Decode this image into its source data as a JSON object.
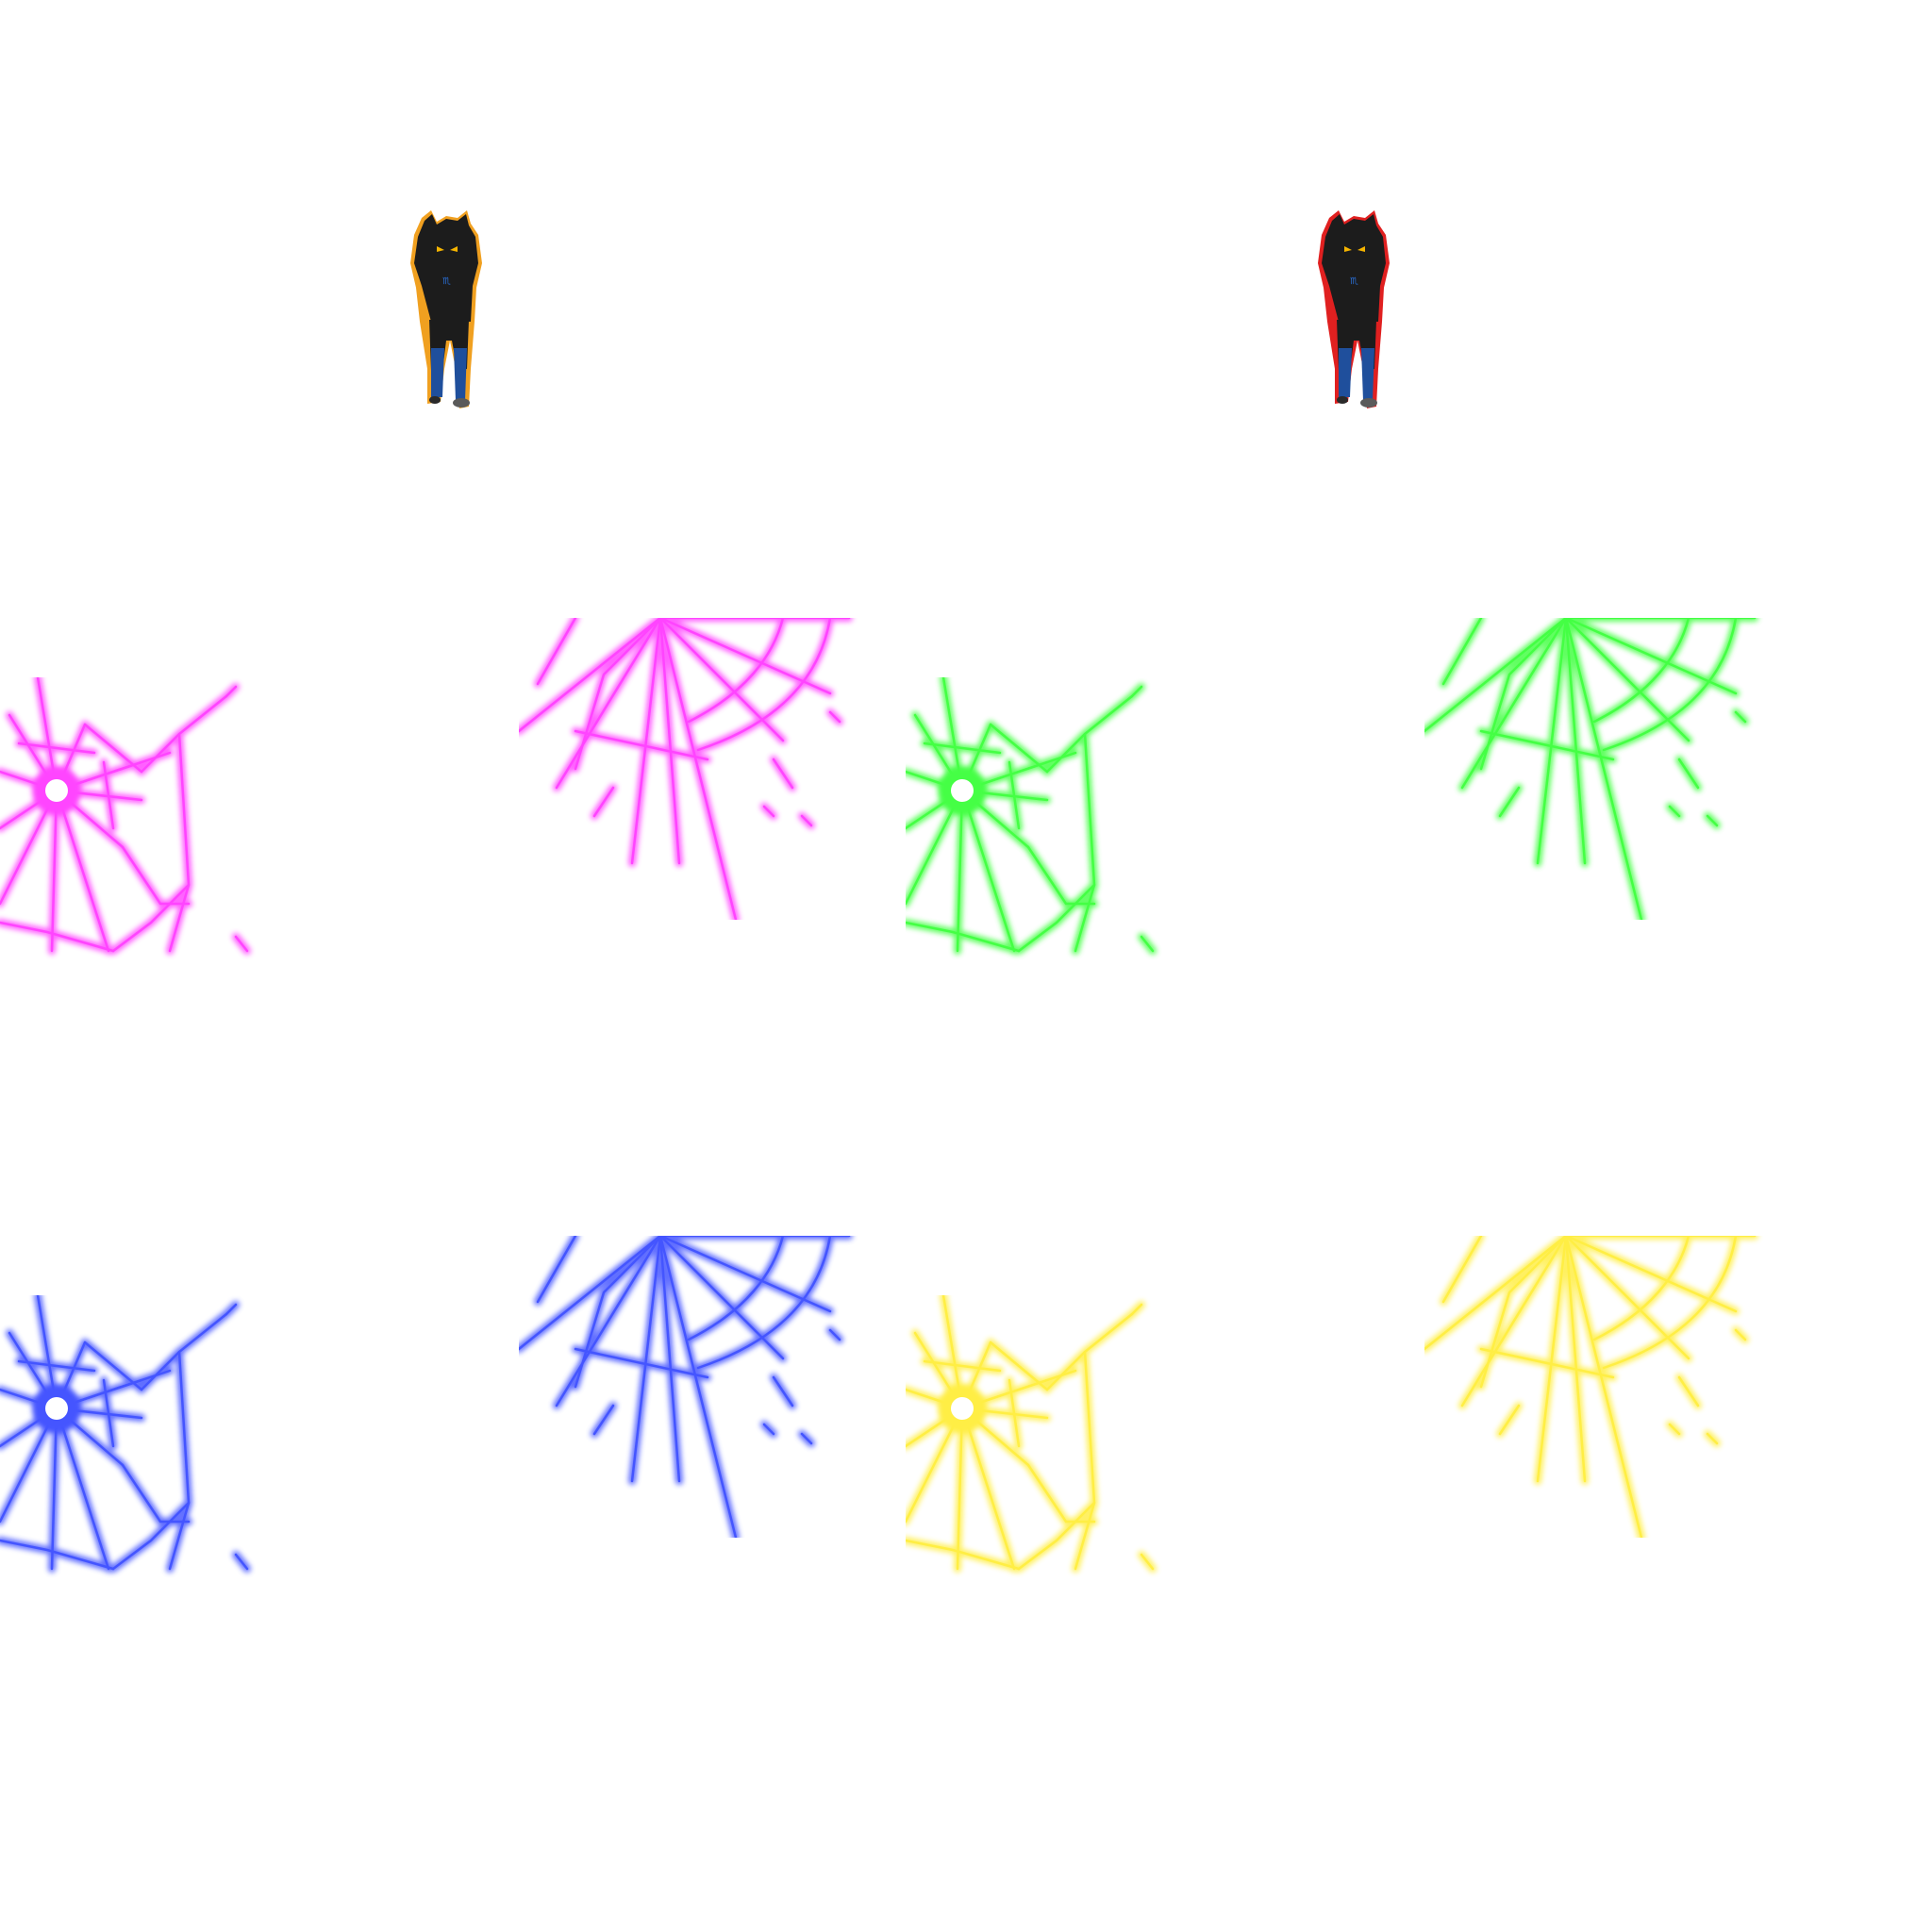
{
  "sheet": {
    "background": "#ffffff",
    "characters": [
      {
        "name": "troll-character-1",
        "outline_color": "#f0a020"
      },
      {
        "name": "troll-character-2",
        "outline_color": "#e02020"
      }
    ],
    "effects": [
      {
        "name": "shattered-glass-effect",
        "color": "#ff44ff",
        "label": "pink"
      },
      {
        "name": "shattered-glass-effect",
        "color": "#44ff44",
        "label": "green"
      },
      {
        "name": "shattered-glass-effect",
        "color": "#4455ff",
        "label": "blue"
      },
      {
        "name": "shattered-glass-effect",
        "color": "#ffee44",
        "label": "yellow"
      }
    ]
  }
}
